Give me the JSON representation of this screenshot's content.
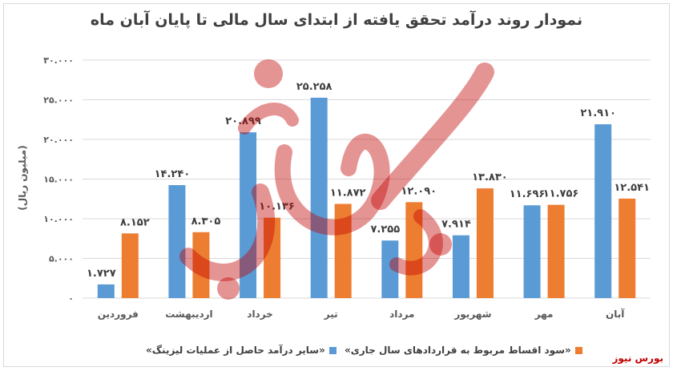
{
  "title": "نمودار روند درآمد تحقق یافته از ابتدای سال مالی تا پایان آبان ماه",
  "watermark": "بورس نیوز",
  "source_label": "بورس نیوز",
  "colors": {
    "series1": "#5b9bd5",
    "series2": "#ed7d31",
    "axis_text": "#595959",
    "gridline": "#d9d9d9",
    "watermark": "#c00000"
  },
  "chart_data": {
    "type": "bar",
    "ylabel": "(میلیون ریال)",
    "ylim": [
      0,
      30000
    ],
    "yticks": [
      0,
      5000,
      10000,
      15000,
      20000,
      25000,
      30000
    ],
    "ytick_labels": [
      "۰",
      "۵.۰۰۰",
      "۱۰.۰۰۰",
      "۱۵.۰۰۰",
      "۲۰.۰۰۰",
      "۲۵.۰۰۰",
      "۳۰.۰۰۰"
    ],
    "grid": true,
    "legend_position": "bottom",
    "categories": [
      "فروردین",
      "اردیبهشت",
      "خرداد",
      "تیر",
      "مرداد",
      "شهریور",
      "مهر",
      "آبان"
    ],
    "series": [
      {
        "name": "«سایر درآمد حاصل از عملیات لیزینگ»",
        "values": [
          1727,
          14240,
          20899,
          25258,
          7255,
          7914,
          11696,
          21910
        ],
        "labels": [
          "۱.۷۲۷",
          "۱۴.۲۴۰",
          "۲۰.۸۹۹",
          "۲۵.۲۵۸",
          "۷.۲۵۵",
          "۷.۹۱۴",
          "۱۱.۶۹۶",
          "۲۱.۹۱۰"
        ]
      },
      {
        "name": "«سود اقساط مربوط به قراردادهای سال جاری»",
        "values": [
          8152,
          8305,
          10136,
          11872,
          12090,
          13830,
          11756,
          12541
        ],
        "labels": [
          "۸.۱۵۲",
          "۸.۳۰۵",
          "۱۰.۱۳۶",
          "۱۱.۸۷۲",
          "۱۲.۰۹۰",
          "۱۳.۸۳۰",
          "۱۱.۷۵۶",
          "۱۲.۵۴۱"
        ]
      }
    ]
  }
}
